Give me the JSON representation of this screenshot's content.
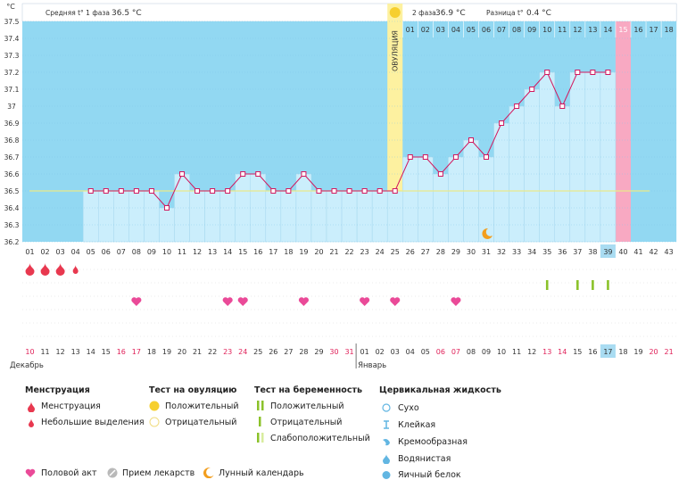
{
  "header": {
    "unit": "°C",
    "phase1_label": "Средняя t° 1 фаза",
    "phase1_value": "36.5 °C",
    "phase2_label": "2 фаза",
    "phase2_value": "36.9 °C",
    "diff_label": "Разница t°",
    "diff_value": "0.4 °C",
    "ovulation_label": "ОВУЛЯЦИЯ"
  },
  "colors": {
    "plot_bg": "#92d8f2",
    "bar_fill": "#cbeefc",
    "line": "#d2185e",
    "ovulation_band": "#fdf1a0",
    "period_highlight": "#f8a9c2",
    "today_highlight": "#a9dcf2",
    "coverline": "#e9e98a",
    "weekend_text": "#e0225a"
  },
  "chart_data": {
    "type": "line",
    "ylim": [
      36.2,
      37.5
    ],
    "yticks": [
      "37.5",
      "37.4",
      "37.3",
      "37.2",
      "37.1",
      "37",
      "36.9",
      "36.8",
      "36.7",
      "36.6",
      "36.5",
      "36.4",
      "36.3",
      "36.2"
    ],
    "coverline": 36.5,
    "ovulation_day": 25,
    "highlight_cycle_day": 40,
    "today_cycle_day": 39,
    "series": [
      {
        "x": [
          5,
          6,
          7,
          8,
          9,
          10,
          11,
          12,
          13,
          14,
          15,
          16,
          17,
          18,
          19,
          20,
          21,
          22,
          23,
          24,
          25,
          26,
          27,
          28,
          29,
          30,
          31,
          32,
          33,
          34,
          35,
          36,
          37,
          38,
          39
        ],
        "values": [
          36.5,
          36.5,
          36.5,
          36.5,
          36.5,
          36.4,
          36.6,
          36.5,
          36.5,
          36.5,
          36.6,
          36.6,
          36.5,
          36.5,
          36.6,
          36.5,
          36.5,
          36.5,
          36.5,
          36.5,
          36.5,
          36.7,
          36.7,
          36.6,
          36.7,
          36.8,
          36.7,
          36.9,
          37.0,
          37.1,
          37.2,
          37.0,
          37.2,
          37.2,
          37.2
        ]
      }
    ],
    "cycle_days": [
      "01",
      "02",
      "03",
      "04",
      "05",
      "06",
      "07",
      "08",
      "09",
      "10",
      "11",
      "12",
      "13",
      "14",
      "15",
      "16",
      "17",
      "18",
      "19",
      "20",
      "21",
      "22",
      "23",
      "24",
      "25",
      "26",
      "27",
      "28",
      "29",
      "30",
      "31",
      "32",
      "33",
      "34",
      "35",
      "36",
      "37",
      "38",
      "39",
      "40",
      "41",
      "42",
      "43"
    ],
    "top_days": [
      "01",
      "02",
      "03",
      "04",
      "05",
      "06",
      "07",
      "08",
      "09",
      "10",
      "11",
      "12",
      "13",
      "14",
      "15",
      "16",
      "17",
      "18"
    ],
    "calendar_days": [
      "10",
      "11",
      "12",
      "13",
      "14",
      "15",
      "16",
      "17",
      "18",
      "19",
      "20",
      "21",
      "22",
      "23",
      "24",
      "25",
      "26",
      "27",
      "28",
      "29",
      "30",
      "31",
      "01",
      "02",
      "03",
      "04",
      "05",
      "06",
      "07",
      "08",
      "09",
      "10",
      "11",
      "12",
      "13",
      "14",
      "15",
      "16",
      "17",
      "18",
      "19",
      "20",
      "21"
    ],
    "calendar_weekend": [
      true,
      false,
      false,
      false,
      false,
      false,
      true,
      true,
      false,
      false,
      false,
      false,
      false,
      true,
      true,
      false,
      false,
      false,
      false,
      false,
      true,
      true,
      false,
      false,
      false,
      false,
      false,
      true,
      true,
      false,
      false,
      false,
      false,
      false,
      true,
      true,
      false,
      false,
      false,
      false,
      false,
      true,
      true
    ],
    "months": [
      "Декабрь",
      "Январь"
    ],
    "menstruation_days": [
      1,
      2,
      3
    ],
    "spotting_days": [
      4
    ],
    "intercourse_days": [
      8,
      14,
      15,
      19,
      23,
      25,
      29
    ],
    "pregnancy_test_days": [
      35,
      37,
      38,
      39
    ],
    "moon_day": 31
  },
  "legend": {
    "menstruation_title": "Менструация",
    "menstruation": "Менструация",
    "spotting": "Небольшие выделения",
    "ovulation_title": "Тест на овуляцию",
    "ov_positive": "Положительный",
    "ov_negative": "Отрицательный",
    "preg_title": "Тест на беременность",
    "preg_positive": "Положительный",
    "preg_negative": "Отрицательный",
    "preg_weak": "Слабоположительный",
    "cervical_title": "Цервикальная жидкость",
    "cf_dry": "Сухо",
    "cf_sticky": "Клейкая",
    "cf_creamy": "Кремообразная",
    "cf_watery": "Водянистая",
    "cf_eggwhite": "Яичный белок",
    "intercourse": "Половой акт",
    "medication": "Прием лекарств",
    "lunar": "Лунный календарь"
  }
}
